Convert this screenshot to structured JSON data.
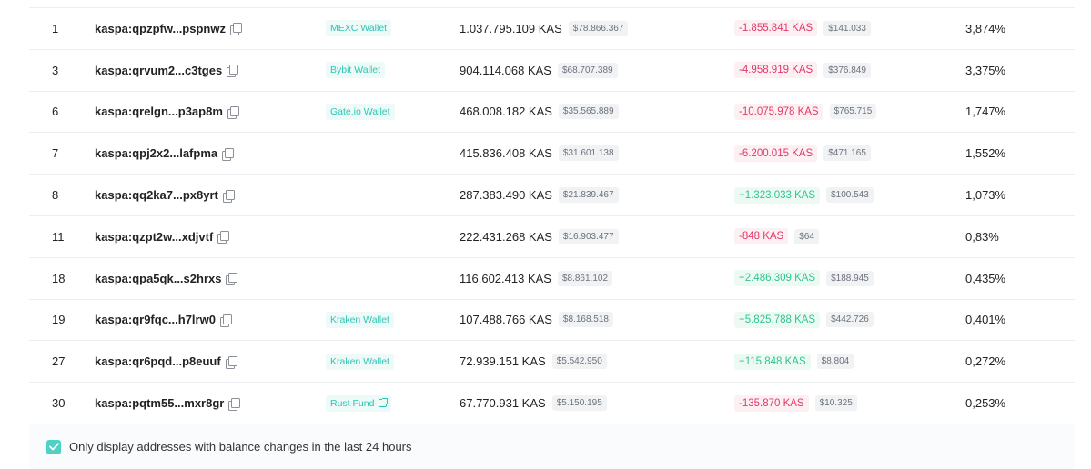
{
  "rows": [
    {
      "rank": "1",
      "address": "kaspa:qpzpfw...pspnwz",
      "tag": "MEXC Wallet",
      "tag_link": false,
      "balance": "1.037.795.109 KAS",
      "balance_usd": "$78.866.367",
      "change": "-1.855.841 KAS",
      "change_dir": "neg",
      "change_usd": "$141.033",
      "pct": "3,874%"
    },
    {
      "rank": "3",
      "address": "kaspa:qrvum2...c3tges",
      "tag": "Bybit Wallet",
      "tag_link": false,
      "balance": "904.114.068 KAS",
      "balance_usd": "$68.707.389",
      "change": "-4.958.919 KAS",
      "change_dir": "neg",
      "change_usd": "$376.849",
      "pct": "3,375%"
    },
    {
      "rank": "6",
      "address": "kaspa:qrelgn...p3ap8m",
      "tag": "Gate.io Wallet",
      "tag_link": false,
      "balance": "468.008.182 KAS",
      "balance_usd": "$35.565.889",
      "change": "-10.075.978 KAS",
      "change_dir": "neg",
      "change_usd": "$765.715",
      "pct": "1,747%"
    },
    {
      "rank": "7",
      "address": "kaspa:qpj2x2...lafpma",
      "tag": "",
      "tag_link": false,
      "balance": "415.836.408 KAS",
      "balance_usd": "$31.601.138",
      "change": "-6.200.015 KAS",
      "change_dir": "neg",
      "change_usd": "$471.165",
      "pct": "1,552%"
    },
    {
      "rank": "8",
      "address": "kaspa:qq2ka7...px8yrt",
      "tag": "",
      "tag_link": false,
      "balance": "287.383.490 KAS",
      "balance_usd": "$21.839.467",
      "change": "+1.323.033 KAS",
      "change_dir": "pos",
      "change_usd": "$100.543",
      "pct": "1,073%"
    },
    {
      "rank": "11",
      "address": "kaspa:qzpt2w...xdjvtf",
      "tag": "",
      "tag_link": false,
      "balance": "222.431.268 KAS",
      "balance_usd": "$16.903.477",
      "change": "-848 KAS",
      "change_dir": "neg",
      "change_usd": "$64",
      "pct": "0,83%"
    },
    {
      "rank": "18",
      "address": "kaspa:qpa5qk...s2hrxs",
      "tag": "",
      "tag_link": false,
      "balance": "116.602.413 KAS",
      "balance_usd": "$8.861.102",
      "change": "+2.486.309 KAS",
      "change_dir": "pos",
      "change_usd": "$188.945",
      "pct": "0,435%"
    },
    {
      "rank": "19",
      "address": "kaspa:qr9fqc...h7lrw0",
      "tag": "Kraken Wallet",
      "tag_link": false,
      "balance": "107.488.766 KAS",
      "balance_usd": "$8.168.518",
      "change": "+5.825.788 KAS",
      "change_dir": "pos",
      "change_usd": "$442.726",
      "pct": "0,401%"
    },
    {
      "rank": "27",
      "address": "kaspa:qr6pqd...p8euuf",
      "tag": "Kraken Wallet",
      "tag_link": false,
      "balance": "72.939.151 KAS",
      "balance_usd": "$5.542.950",
      "change": "+115.848 KAS",
      "change_dir": "pos",
      "change_usd": "$8.804",
      "pct": "0,272%"
    },
    {
      "rank": "30",
      "address": "kaspa:pqtm55...mxr8gr",
      "tag": "Rust Fund",
      "tag_link": true,
      "balance": "67.770.931 KAS",
      "balance_usd": "$5.150.195",
      "change": "-135.870 KAS",
      "change_dir": "neg",
      "change_usd": "$10.325",
      "pct": "0,253%"
    }
  ],
  "footer": {
    "checkbox_checked": true,
    "label": "Only display addresses with balance changes in the last 24 hours"
  },
  "colors": {
    "accent": "#4fd1c5",
    "tag_text": "#2cc6b4",
    "negative": "#e0386a",
    "positive": "#2fc58f"
  },
  "icons": {
    "copy": "copy-icon",
    "external": "external-link-icon",
    "check": "check-icon"
  }
}
